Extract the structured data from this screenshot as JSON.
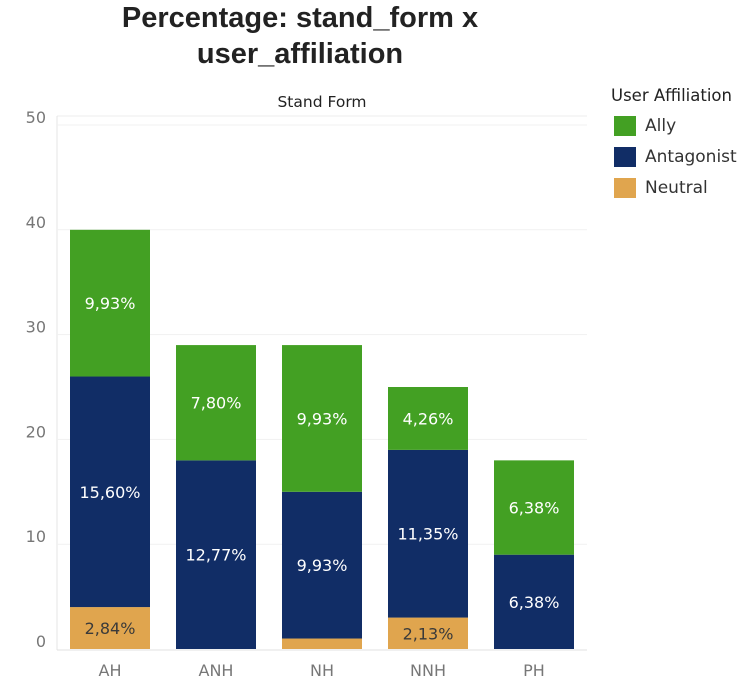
{
  "chart_data": {
    "type": "bar",
    "stacked": true,
    "title": "Percentage: stand_form x user_affiliation",
    "title_lines": [
      "Percentage: stand_form x",
      "user_affiliation"
    ],
    "xlabel": "Stand Form",
    "ylabel": "",
    "ylim": [
      0,
      50
    ],
    "yticks": [
      0,
      10,
      20,
      30,
      40,
      50
    ],
    "ytick_labels": [
      "0",
      "10",
      "20",
      "30",
      "40",
      "50"
    ],
    "grid": true,
    "legend_position": "top-right",
    "legend_title": "User Affiliation",
    "categories": [
      "AH",
      "ANH",
      "NH",
      "NNH",
      "PH"
    ],
    "series": [
      {
        "name": "Neutral",
        "color": "#E0A54E",
        "values": [
          4,
          0,
          1,
          3,
          0
        ],
        "labels": [
          "2,84%",
          "",
          "",
          "2,13%",
          ""
        ]
      },
      {
        "name": "Antagonist",
        "color": "#112D66",
        "values": [
          22,
          18,
          14,
          16,
          9
        ],
        "labels": [
          "15,60%",
          "12,77%",
          "9,93%",
          "11,35%",
          "6,38%"
        ]
      },
      {
        "name": "Ally",
        "color": "#43A023",
        "values": [
          14,
          11,
          14,
          6,
          9
        ],
        "labels": [
          "9,93%",
          "7,80%",
          "9,93%",
          "4,26%",
          "6,38%"
        ]
      }
    ],
    "legend_order": [
      "Ally",
      "Antagonist",
      "Neutral"
    ]
  }
}
